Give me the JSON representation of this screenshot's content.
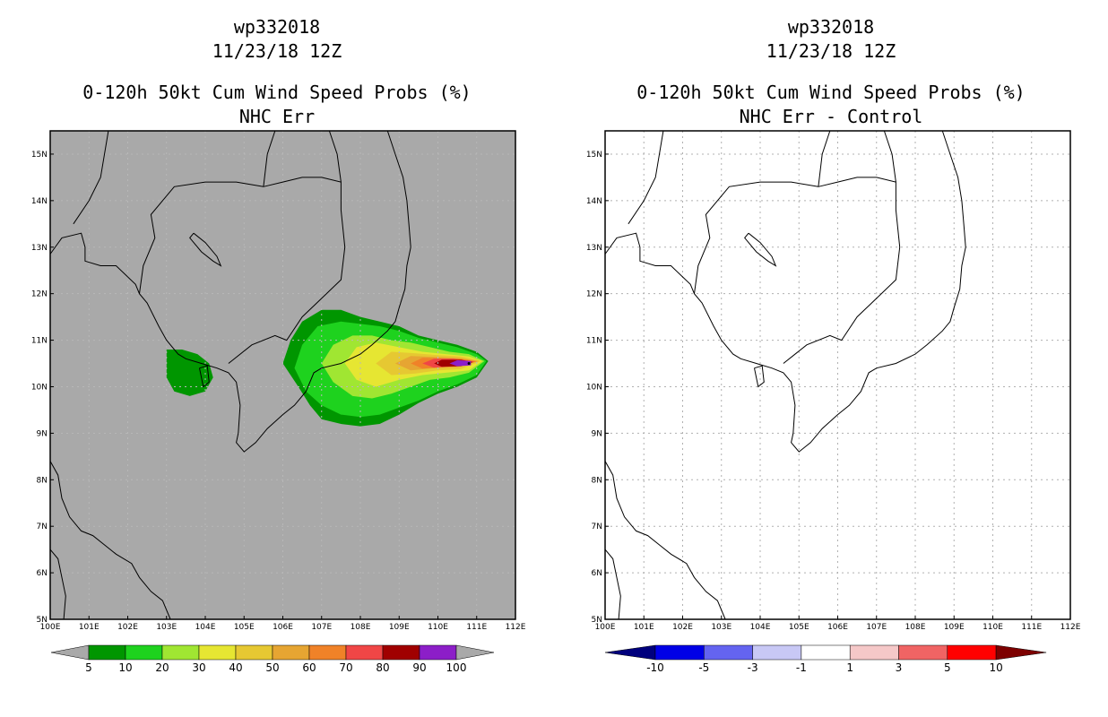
{
  "chart_data": [
    {
      "type": "heatmap",
      "title_lines": [
        "wp332018",
        "11/23/18 12Z",
        "0-120h 50kt Cum Wind Speed Probs (%)",
        "NHC Err"
      ],
      "xlabel": "",
      "ylabel": "",
      "xlim": [
        100,
        112
      ],
      "ylim": [
        5,
        15.5
      ],
      "x_ticks": [
        "100E",
        "101E",
        "102E",
        "103E",
        "104E",
        "105E",
        "106E",
        "107E",
        "108E",
        "109E",
        "110E",
        "111E",
        "112E"
      ],
      "y_ticks": [
        "5N",
        "6N",
        "7N",
        "8N",
        "9N",
        "10N",
        "11N",
        "12N",
        "13N",
        "14N",
        "15N"
      ],
      "background": "#a9a9a9",
      "grid": true,
      "colorbar": {
        "labels": [
          "5",
          "10",
          "20",
          "30",
          "40",
          "50",
          "60",
          "70",
          "80",
          "90",
          "100"
        ],
        "colors": [
          "#009600",
          "#1ed21e",
          "#a0e632",
          "#e6e632",
          "#e6c832",
          "#e6a532",
          "#f08228",
          "#f04646",
          "#a00000",
          "#8c1ec8"
        ],
        "extend_color": "#a9a9a9"
      },
      "probability_maximum": {
        "lon": 110.8,
        "lat": 10.5,
        "value": 100
      }
    },
    {
      "type": "heatmap",
      "title_lines": [
        "wp332018",
        "11/23/18 12Z",
        "0-120h 50kt Cum Wind Speed Probs (%)",
        "NHC Err - Control"
      ],
      "xlabel": "",
      "ylabel": "",
      "xlim": [
        100,
        112
      ],
      "ylim": [
        5,
        15.5
      ],
      "x_ticks": [
        "100E",
        "101E",
        "102E",
        "103E",
        "104E",
        "105E",
        "106E",
        "107E",
        "108E",
        "109E",
        "110E",
        "111E",
        "112E"
      ],
      "y_ticks": [
        "5N",
        "6N",
        "7N",
        "8N",
        "9N",
        "10N",
        "11N",
        "12N",
        "13N",
        "14N",
        "15N"
      ],
      "background": "#ffffff",
      "grid": true,
      "colorbar": {
        "labels": [
          "-10",
          "-5",
          "-3",
          "-1",
          "1",
          "3",
          "5",
          "10"
        ],
        "colors": [
          "#0000e6",
          "#6464f0",
          "#c8c8f5",
          "#ffffff",
          "#f5c8c8",
          "#f06464",
          "#ff0000"
        ],
        "left_extend_color": "#00007d",
        "right_extend_color": "#7d0000"
      }
    }
  ]
}
